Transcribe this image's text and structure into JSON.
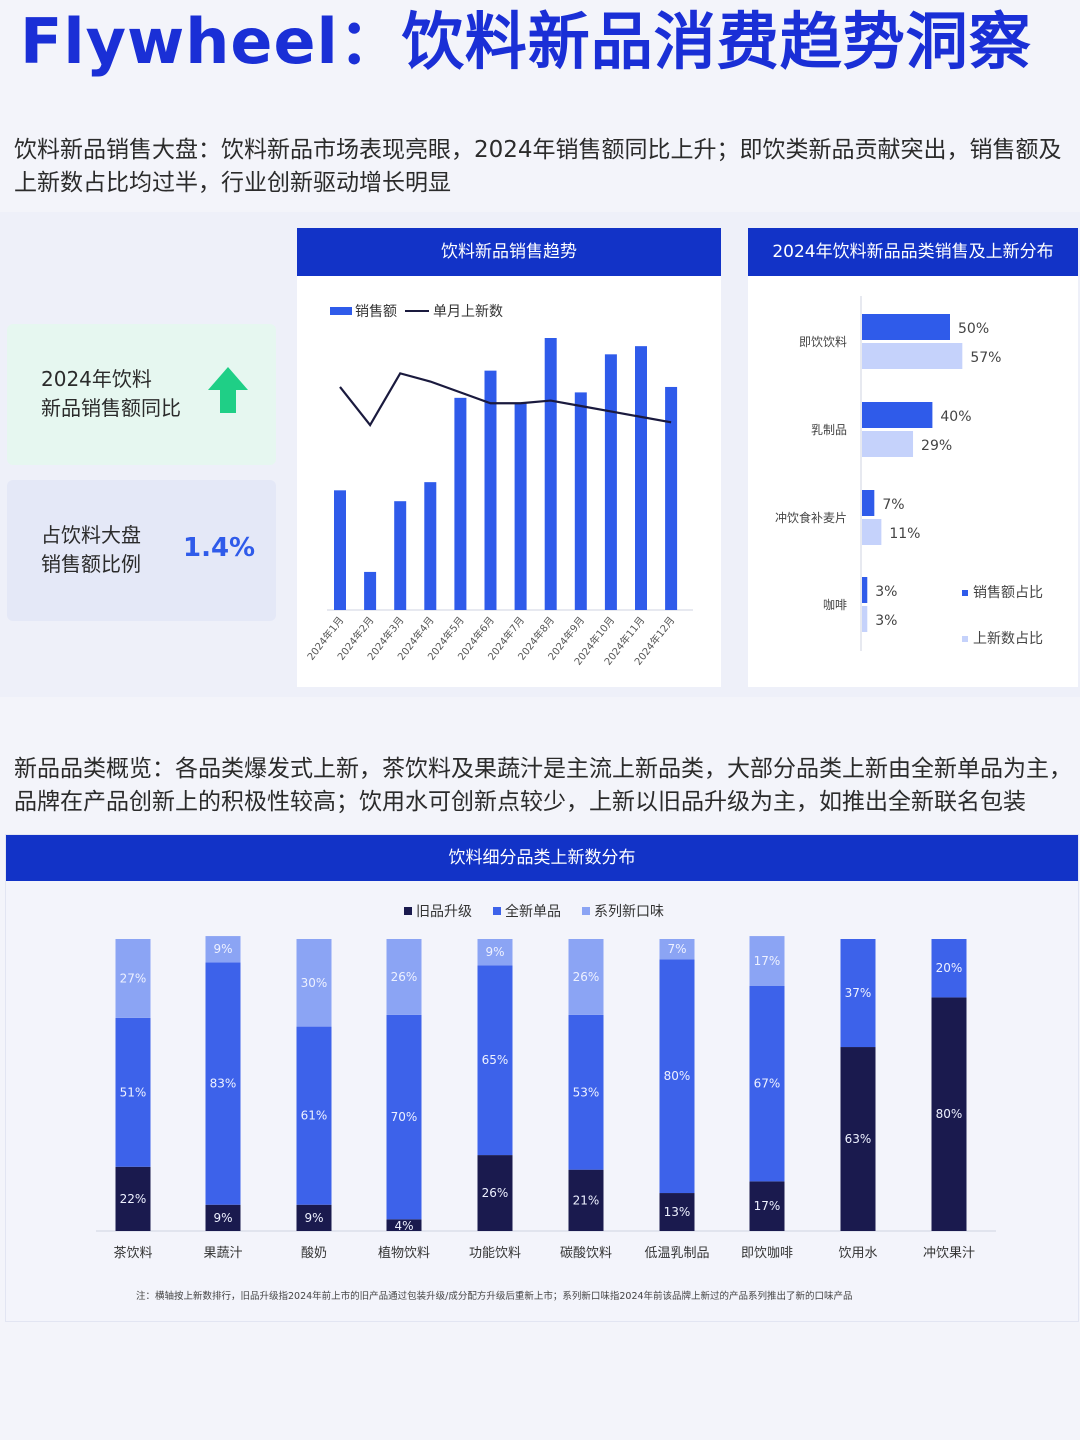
{
  "page": {
    "title": "Flywheel：饮料新品消费趋势洞察",
    "section1_text": "饮料新品销售大盘：饮料新品市场表现亮眼，2024年销售额同比上升；即饮类新品贡献突出，销售额及上新数占比均过半，行业创新驱动增长明显",
    "section2_text": "新品品类概览：各品类爆发式上新，茶饮料及果蔬汁是主流上新品类，大部分品类上新由全新单品为主，品牌在产品创新上的积极性较高；饮用水可创新点较少，上新以旧品升级为主，如推出全新联名包装"
  },
  "stats": [
    {
      "label_line1": "2024年饮料",
      "label_line2": "新品销售额同比",
      "trend": "up",
      "icon": "arrow-up-icon",
      "color": "#1fcf86"
    },
    {
      "label_line1": "占饮料大盘",
      "label_line2": "销售额比例",
      "value": "1.4%"
    }
  ],
  "colors": {
    "primary": "#1233c7",
    "bar_blue": "#2f5bea",
    "light_blue": "#c5d2fb",
    "dark_navy": "#1a1a4e",
    "mid_blue": "#3d62ea",
    "pale_blue": "#8ba4f4"
  },
  "chart_data": [
    {
      "type": "bar",
      "title": "饮料新品销售趋势",
      "categories": [
        "2024年1月",
        "2024年2月",
        "2024年3月",
        "2024年4月",
        "2024年5月",
        "2024年6月",
        "2024年7月",
        "2024年8月",
        "2024年9月",
        "2024年10月",
        "2024年11月",
        "2024年12月"
      ],
      "series": [
        {
          "name": "销售额",
          "type": "bar",
          "values": [
            44,
            14,
            40,
            47,
            78,
            88,
            76,
            100,
            80,
            94,
            97,
            82
          ]
        },
        {
          "name": "单月上新数",
          "type": "line",
          "values": [
            82,
            68,
            87,
            84,
            80,
            76,
            76,
            77,
            75,
            73,
            71,
            69
          ]
        }
      ],
      "ylim": [
        0,
        100
      ],
      "legend": "top-left"
    },
    {
      "type": "bar",
      "orientation": "horizontal",
      "title": "2024年饮料新品品类销售及上新分布",
      "categories": [
        "即饮饮料",
        "乳制品",
        "冲饮食补麦片",
        "咖啡"
      ],
      "series": [
        {
          "name": "销售额占比",
          "values": [
            50,
            40,
            7,
            3
          ]
        },
        {
          "name": "上新数占比",
          "values": [
            57,
            29,
            11,
            3
          ]
        }
      ],
      "value_labels": [
        [
          "50%",
          "40%",
          "7%",
          "3%"
        ],
        [
          "57%",
          "29%",
          "11%",
          "3%"
        ]
      ],
      "xlim": [
        0,
        100
      ],
      "legend": "bottom-right"
    },
    {
      "type": "bar",
      "stacked": true,
      "title": "饮料细分品类上新数分布",
      "categories": [
        "茶饮料",
        "果蔬汁",
        "酸奶",
        "植物饮料",
        "功能饮料",
        "碳酸饮料",
        "低温乳制品",
        "即饮咖啡",
        "饮用水",
        "冲饮果汁"
      ],
      "series": [
        {
          "name": "旧品升级",
          "values": [
            22,
            9,
            9,
            4,
            26,
            21,
            13,
            17,
            63,
            80
          ]
        },
        {
          "name": "全新单品",
          "values": [
            51,
            83,
            61,
            70,
            65,
            53,
            80,
            67,
            37,
            20
          ]
        },
        {
          "name": "系列新口味",
          "values": [
            27,
            9,
            30,
            26,
            9,
            26,
            7,
            17,
            0,
            0
          ]
        }
      ],
      "ylim": [
        0,
        100
      ],
      "legend": "top-center",
      "note": "注：横轴按上新数排行，旧品升级指2024年前上市的旧产品通过包装升级/成分配方升级后重新上市；系列新口味指2024年前该品牌上新过的产品系列推出了新的口味产品"
    }
  ]
}
